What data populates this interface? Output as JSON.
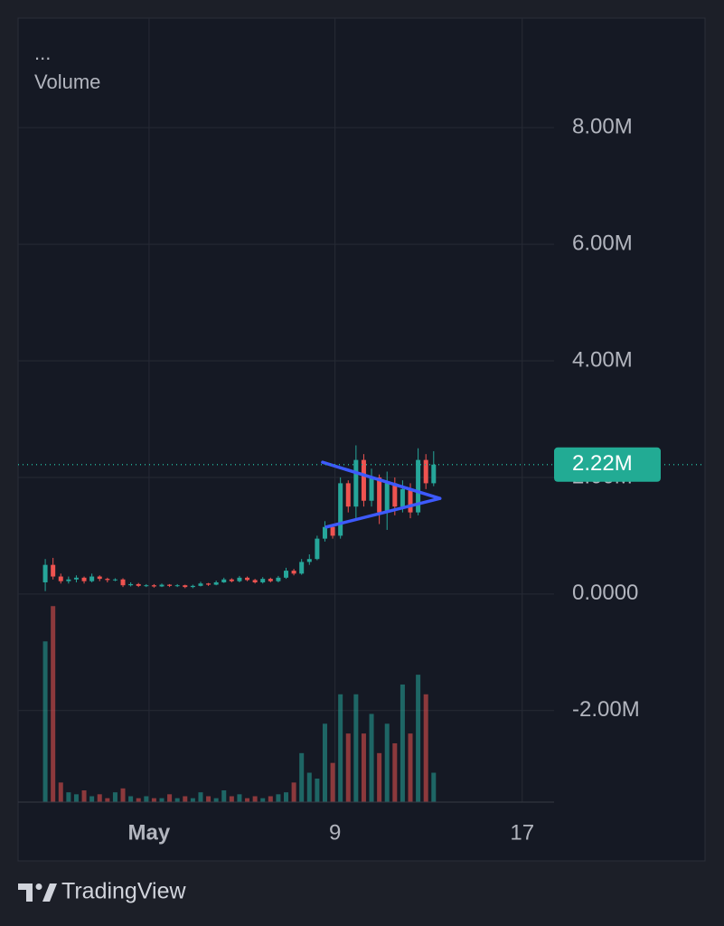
{
  "chart_data": {
    "type": "candlestick",
    "legend_symbol": "...",
    "up_color": "#26a69a",
    "down_color": "#ef5350",
    "open": [
      200000,
      500000,
      300000,
      220000,
      250000,
      280000,
      220000,
      300000,
      260000,
      240000,
      250000,
      150000,
      170000,
      140000,
      150000,
      130000,
      160000,
      140000,
      150000,
      120000,
      140000,
      180000,
      160000,
      200000,
      250000,
      220000,
      280000,
      240000,
      200000,
      260000,
      220000,
      280000,
      400000,
      350000,
      550000,
      600000,
      950000,
      1150000,
      1000000,
      1900000,
      1500000,
      2300000,
      1600000,
      2000000,
      1400000,
      1900000,
      1500000,
      1800000,
      1400000,
      2300000,
      1900000
    ],
    "high": [
      600000,
      620000,
      350000,
      300000,
      320000,
      300000,
      350000,
      320000,
      280000,
      270000,
      270000,
      200000,
      190000,
      170000,
      170000,
      180000,
      170000,
      170000,
      160000,
      160000,
      210000,
      190000,
      230000,
      280000,
      270000,
      310000,
      300000,
      260000,
      290000,
      280000,
      310000,
      450000,
      430000,
      600000,
      680000,
      1000000,
      1250000,
      1200000,
      2000000,
      1950000,
      2550000,
      2400000,
      2150000,
      2050000,
      2100000,
      2000000,
      1950000,
      1900000,
      2500000,
      2400000,
      2450000
    ],
    "low": [
      50000,
      250000,
      180000,
      180000,
      200000,
      180000,
      200000,
      220000,
      200000,
      220000,
      120000,
      130000,
      120000,
      120000,
      110000,
      120000,
      120000,
      120000,
      100000,
      100000,
      130000,
      140000,
      150000,
      190000,
      200000,
      200000,
      220000,
      180000,
      180000,
      200000,
      200000,
      260000,
      320000,
      330000,
      500000,
      580000,
      900000,
      950000,
      950000,
      1400000,
      1300000,
      1500000,
      1500000,
      1200000,
      1100000,
      1350000,
      1400000,
      1300000,
      1350000,
      1800000,
      1850000
    ],
    "close": [
      500000,
      300000,
      220000,
      250000,
      280000,
      220000,
      300000,
      260000,
      240000,
      250000,
      150000,
      170000,
      140000,
      150000,
      130000,
      160000,
      140000,
      150000,
      120000,
      140000,
      180000,
      160000,
      200000,
      250000,
      220000,
      280000,
      240000,
      200000,
      260000,
      220000,
      280000,
      400000,
      350000,
      550000,
      600000,
      950000,
      1150000,
      1000000,
      1900000,
      1500000,
      2300000,
      1600000,
      2000000,
      1400000,
      1900000,
      1500000,
      1800000,
      1400000,
      2300000,
      1900000,
      2220000
    ],
    "volume": {
      "name": "Volume",
      "axis": "y2",
      "values": [
        82,
        100,
        10,
        5,
        4,
        6,
        3,
        4,
        2,
        5,
        7,
        3,
        2,
        3,
        2,
        2,
        4,
        2,
        3,
        2,
        5,
        3,
        2,
        6,
        3,
        4,
        2,
        3,
        2,
        3,
        4,
        5,
        10,
        25,
        15,
        12,
        40,
        20,
        55,
        35,
        55,
        35,
        45,
        25,
        40,
        30,
        60,
        35,
        65,
        55,
        15
      ]
    },
    "xlim": [
      -3.5,
      65.5
    ],
    "xticks": [
      {
        "value": 13.36,
        "label": "May"
      },
      {
        "value": 37.3,
        "label": "9"
      },
      {
        "value": 61.4,
        "label": "17"
      }
    ],
    "ylim": [
      -3570000,
      9880000
    ],
    "yticks": [
      {
        "value": 8000000,
        "label": "8.00M"
      },
      {
        "value": 6000000,
        "label": "6.00M"
      },
      {
        "value": 4000000,
        "label": "4.00M"
      },
      {
        "value": 2000000,
        "label": "2.00M"
      },
      {
        "value": 0,
        "label": "0.0000"
      },
      {
        "value": -2000000,
        "label": "-2.00M"
      }
    ],
    "y2lim": [
      0,
      400
    ],
    "grid": true,
    "price_line": {
      "value": 2220000,
      "label": "2.22M",
      "color": "#22ab94"
    },
    "trendlines": [
      {
        "color": "#3d5afe",
        "points": [
          [
            35.7,
            2260000
          ],
          [
            50.8,
            1640000
          ]
        ]
      },
      {
        "color": "#3d5afe",
        "points": [
          [
            36.2,
            1150000
          ],
          [
            50.8,
            1640000
          ]
        ]
      }
    ],
    "brand": "TradingView"
  }
}
